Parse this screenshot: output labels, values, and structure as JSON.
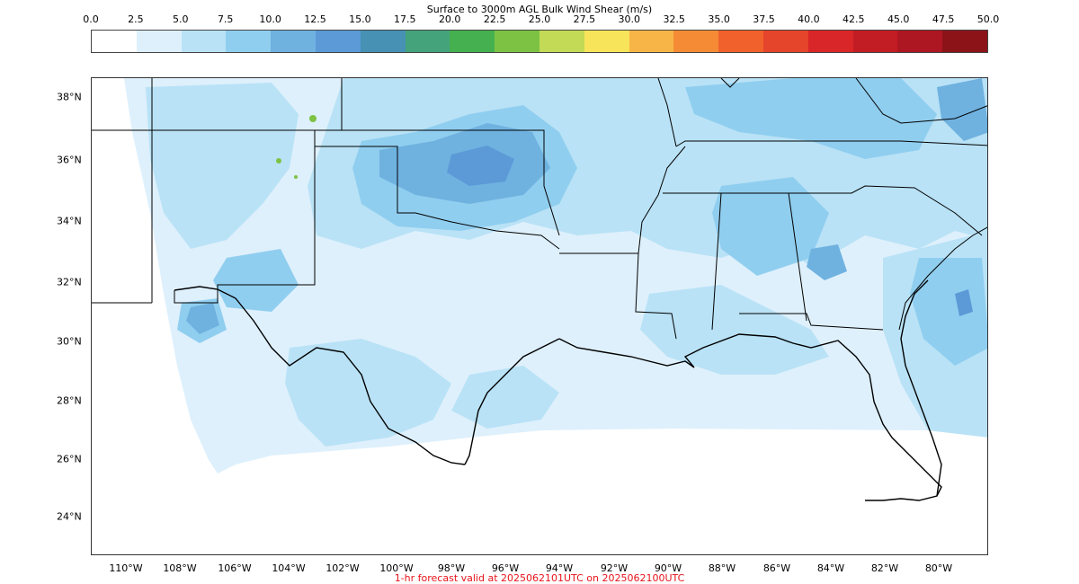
{
  "colorbar": {
    "title": "Surface to 3000m AGL Bulk Wind Shear (m/s)",
    "ticks": [
      "0.0",
      "2.5",
      "5.0",
      "7.5",
      "10.0",
      "12.5",
      "15.0",
      "17.5",
      "20.0",
      "22.5",
      "25.0",
      "27.5",
      "30.0",
      "32.5",
      "35.0",
      "37.5",
      "40.0",
      "42.5",
      "45.0",
      "47.5",
      "50.0"
    ],
    "colors": [
      "#ffffff",
      "#def0fc",
      "#b9e2f6",
      "#90ceef",
      "#6fb2e0",
      "#5b9ad7",
      "#4691b4",
      "#45a37c",
      "#45b04f",
      "#7ec244",
      "#c2da56",
      "#f7e45a",
      "#f8b547",
      "#f58b35",
      "#f0612b",
      "#e4452b",
      "#d92628",
      "#c21c24",
      "#ad1721",
      "#8c1419"
    ]
  },
  "map": {
    "lat_labels": [
      "38°N",
      "36°N",
      "34°N",
      "32°N",
      "30°N",
      "28°N",
      "26°N",
      "24°N"
    ],
    "lon_labels": [
      "110°W",
      "108°W",
      "106°W",
      "104°W",
      "102°W",
      "100°W",
      "98°W",
      "96°W",
      "94°W",
      "92°W",
      "90°W",
      "88°W",
      "86°W",
      "84°W",
      "82°W",
      "80°W"
    ],
    "fill_colors": {
      "lightest": "#def0fc",
      "light": "#b9e2f6",
      "medium": "#90ceef",
      "darker": "#6fb2e0",
      "dark": "#5b9ad7",
      "green": "#7ec244"
    }
  },
  "footer": {
    "text": "1-hr forecast valid at 2025062101UTC on 2025062100UTC",
    "color": "#e8141b"
  }
}
